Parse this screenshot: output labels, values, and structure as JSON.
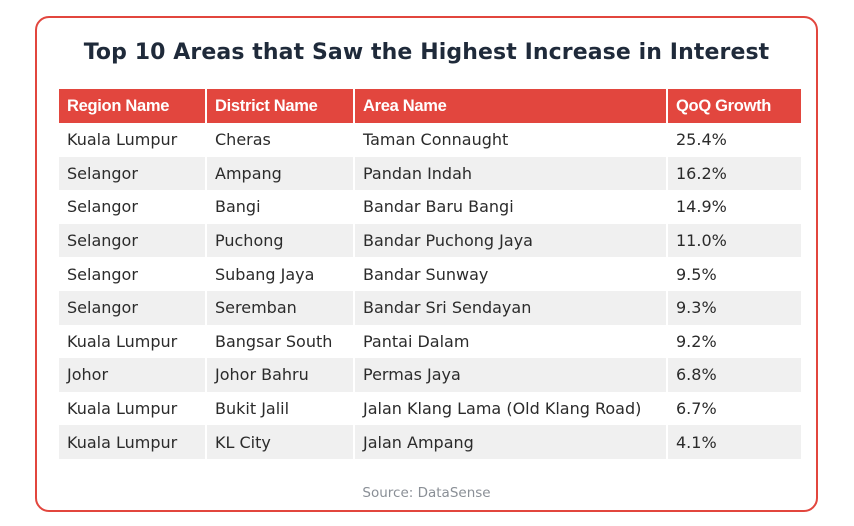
{
  "title": "Top 10 Areas that Saw the Highest Increase in Interest",
  "table": {
    "headers": [
      "Region Name",
      "District Name",
      "Area Name",
      "QoQ Growth"
    ],
    "rows": [
      [
        "Kuala Lumpur",
        "Cheras",
        "Taman Connaught",
        "25.4%"
      ],
      [
        "Selangor",
        "Ampang",
        "Pandan Indah",
        "16.2%"
      ],
      [
        "Selangor",
        "Bangi",
        "Bandar Baru Bangi",
        "14.9%"
      ],
      [
        "Selangor",
        "Puchong",
        "Bandar Puchong Jaya",
        "11.0%"
      ],
      [
        "Selangor",
        "Subang Jaya",
        "Bandar Sunway",
        "9.5%"
      ],
      [
        "Selangor",
        "Seremban",
        "Bandar Sri Sendayan",
        "9.3%"
      ],
      [
        "Kuala Lumpur",
        "Bangsar South",
        "Pantai Dalam",
        "9.2%"
      ],
      [
        "Johor",
        "Johor Bahru",
        "Permas Jaya",
        "6.8%"
      ],
      [
        "Kuala Lumpur",
        "Bukit Jalil",
        "Jalan Klang Lama (Old Klang Road)",
        "6.7%"
      ],
      [
        "Kuala Lumpur",
        "KL City",
        "Jalan Ampang",
        "4.1%"
      ]
    ]
  },
  "source": "Source: DataSense",
  "colors": {
    "accent": "#e2463e",
    "title": "#1f2a3a",
    "zebra": "#f0f0f0",
    "source": "#8a8f96"
  },
  "watermark_icon": "datasense-logo-icon"
}
